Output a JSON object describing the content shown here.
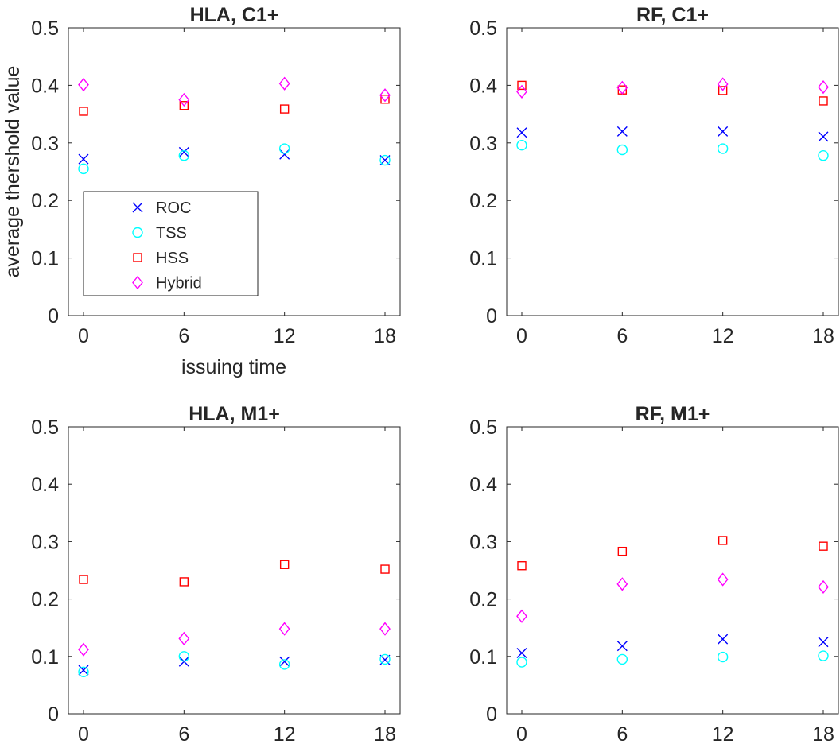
{
  "figure": {
    "ylabel": "average thershold value",
    "xlabel": "issuing time"
  },
  "legend": {
    "location": "southwest",
    "entries": [
      {
        "name": "ROC",
        "marker": "x",
        "color": "#0000ff"
      },
      {
        "name": "TSS",
        "marker": "circle",
        "color": "#00ffff"
      },
      {
        "name": "HSS",
        "marker": "square",
        "color": "#ff0000"
      },
      {
        "name": "Hybrid",
        "marker": "diamond",
        "color": "#ff00ff"
      }
    ]
  },
  "chart_data": [
    {
      "type": "scatter",
      "title": "HLA, C1+",
      "x": [
        0,
        6,
        12,
        18
      ],
      "xticks": [
        "0",
        "6",
        "12",
        "18"
      ],
      "yticks": [
        "0",
        "0.1",
        "0.2",
        "0.3",
        "0.4",
        "0.5"
      ],
      "ylim": [
        0,
        0.5
      ],
      "series": [
        {
          "name": "ROC",
          "values": [
            0.272,
            0.284,
            0.28,
            0.27
          ]
        },
        {
          "name": "TSS",
          "values": [
            0.255,
            0.278,
            0.29,
            0.27
          ]
        },
        {
          "name": "HSS",
          "values": [
            0.355,
            0.365,
            0.359,
            0.376
          ]
        },
        {
          "name": "Hybrid",
          "values": [
            0.401,
            0.375,
            0.403,
            0.383
          ]
        }
      ]
    },
    {
      "type": "scatter",
      "title": "RF, C1+",
      "x": [
        0,
        6,
        12,
        18
      ],
      "xticks": [
        "0",
        "6",
        "12",
        "18"
      ],
      "yticks": [
        "0",
        "0.1",
        "0.2",
        "0.3",
        "0.4",
        "0.5"
      ],
      "ylim": [
        0,
        0.5
      ],
      "series": [
        {
          "name": "ROC",
          "values": [
            0.318,
            0.32,
            0.32,
            0.311
          ]
        },
        {
          "name": "TSS",
          "values": [
            0.296,
            0.288,
            0.29,
            0.278
          ]
        },
        {
          "name": "HSS",
          "values": [
            0.4,
            0.392,
            0.391,
            0.373
          ]
        },
        {
          "name": "Hybrid",
          "values": [
            0.389,
            0.396,
            0.402,
            0.397
          ]
        }
      ]
    },
    {
      "type": "scatter",
      "title": "HLA, M1+",
      "x": [
        0,
        6,
        12,
        18
      ],
      "xticks": [
        "0",
        "6",
        "12",
        "18"
      ],
      "yticks": [
        "0",
        "0.1",
        "0.2",
        "0.3",
        "0.4",
        "0.5"
      ],
      "ylim": [
        0,
        0.5
      ],
      "series": [
        {
          "name": "ROC",
          "values": [
            0.076,
            0.091,
            0.091,
            0.094
          ]
        },
        {
          "name": "TSS",
          "values": [
            0.073,
            0.1,
            0.086,
            0.095
          ]
        },
        {
          "name": "HSS",
          "values": [
            0.234,
            0.23,
            0.26,
            0.252
          ]
        },
        {
          "name": "Hybrid",
          "values": [
            0.112,
            0.131,
            0.148,
            0.148
          ]
        }
      ]
    },
    {
      "type": "scatter",
      "title": "RF, M1+",
      "x": [
        0,
        6,
        12,
        18
      ],
      "xticks": [
        "0",
        "6",
        "12",
        "18"
      ],
      "yticks": [
        "0",
        "0.1",
        "0.2",
        "0.3",
        "0.4",
        "0.5"
      ],
      "ylim": [
        0,
        0.5
      ],
      "series": [
        {
          "name": "ROC",
          "values": [
            0.106,
            0.118,
            0.13,
            0.125
          ]
        },
        {
          "name": "TSS",
          "values": [
            0.09,
            0.095,
            0.099,
            0.101
          ]
        },
        {
          "name": "HSS",
          "values": [
            0.258,
            0.283,
            0.302,
            0.292
          ]
        },
        {
          "name": "Hybrid",
          "values": [
            0.17,
            0.226,
            0.234,
            0.221
          ]
        }
      ]
    }
  ]
}
